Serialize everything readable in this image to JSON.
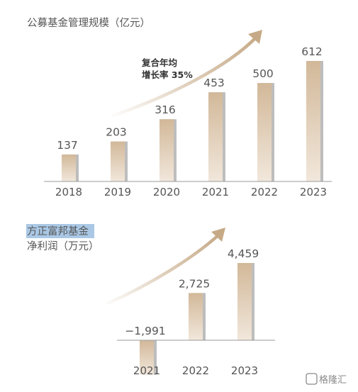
{
  "chart_data": [
    {
      "type": "bar",
      "title": "公募基金管理规模（亿元）",
      "categories": [
        "2018",
        "2019",
        "2020",
        "2021",
        "2022",
        "2023"
      ],
      "values": [
        137,
        203,
        316,
        453,
        500,
        612
      ],
      "value_labels": [
        "137",
        "203",
        "316",
        "453",
        "500",
        "612"
      ],
      "annotation": {
        "line1": "复合年均",
        "line2": "增长率 35%"
      },
      "ylim": [
        0,
        650
      ]
    },
    {
      "type": "bar",
      "title": "方正富邦基金",
      "subtitle": "净利润（万元）",
      "categories": [
        "2021",
        "2022",
        "2023"
      ],
      "values": [
        -1991,
        2725,
        4459
      ],
      "value_labels": [
        "−1,991",
        "2,725",
        "4,459"
      ],
      "ylim": [
        -1700,
        4600
      ]
    }
  ],
  "watermark": "格隆汇",
  "colors": {
    "bar_top": "#d2b899",
    "bar_bottom": "#f1e7db",
    "bar_shadow": "#bdbdbd",
    "arrow": "#c6aa87",
    "title_highlight": "#aac8e6"
  }
}
